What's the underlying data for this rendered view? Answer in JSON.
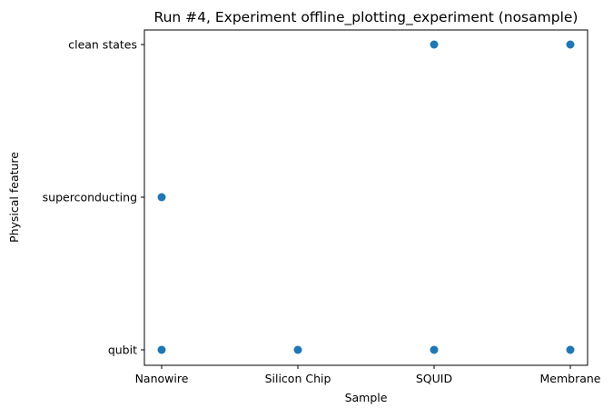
{
  "chart_data": {
    "type": "scatter",
    "title": "Run #4, Experiment offline_plotting_experiment (nosample)",
    "xlabel": "Sample",
    "ylabel": "Physical feature",
    "x_categories": [
      "Nanowire",
      "Silicon Chip",
      "SQUID",
      "Membrane"
    ],
    "y_categories": [
      "qubit",
      "superconducting",
      "clean states"
    ],
    "points": [
      {
        "x": "Nanowire",
        "y": "qubit"
      },
      {
        "x": "Nanowire",
        "y": "superconducting"
      },
      {
        "x": "Silicon Chip",
        "y": "qubit"
      },
      {
        "x": "SQUID",
        "y": "qubit"
      },
      {
        "x": "SQUID",
        "y": "clean states"
      },
      {
        "x": "Membrane",
        "y": "qubit"
      },
      {
        "x": "Membrane",
        "y": "clean states"
      }
    ],
    "marker_color": "#1f77b4",
    "grid": false,
    "legend": "none"
  }
}
